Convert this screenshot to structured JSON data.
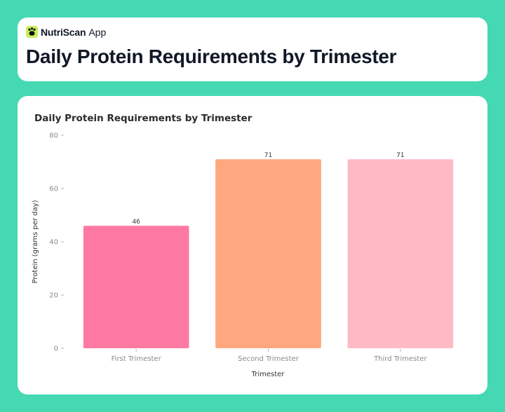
{
  "app": {
    "name": "NutriScan",
    "suffix": "App",
    "icon": "paw-icon",
    "icon_color": "#c8ef5a"
  },
  "page": {
    "title": "Daily Protein Requirements by Trimester"
  },
  "chart_data": {
    "type": "bar",
    "title": "Daily Protein Requirements by Trimester",
    "xlabel": "Trimester",
    "ylabel": "Protein (grams per day)",
    "categories": [
      "First Trimester",
      "Second Trimester",
      "Third Trimester"
    ],
    "values": [
      46,
      71,
      71
    ],
    "data_labels": [
      "46",
      "71",
      "71"
    ],
    "colors": [
      "#ff7aa2",
      "#ffa880",
      "#ffbac6"
    ],
    "ylim": [
      0,
      80
    ],
    "yticks": [
      0,
      20,
      40,
      60,
      80
    ],
    "grid": false,
    "legend": "none"
  }
}
